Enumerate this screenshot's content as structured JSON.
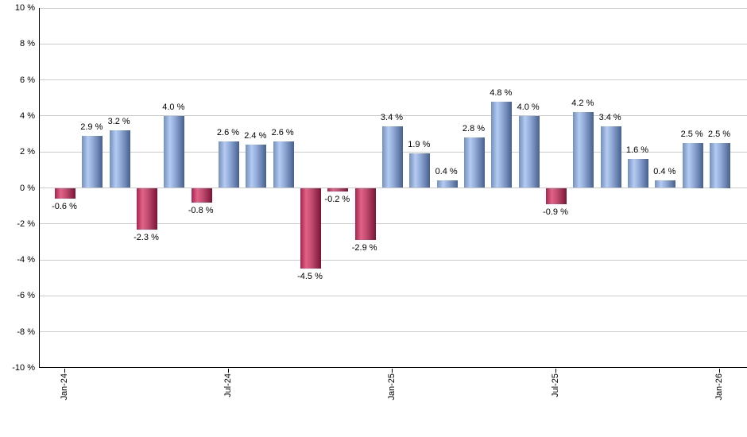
{
  "chart_data": {
    "type": "bar",
    "title": "",
    "description": "Monthly percentage returns bar chart, positive months blue, negative months red",
    "unit": "%",
    "values": [
      -0.6,
      2.9,
      3.2,
      -2.3,
      4.0,
      -0.8,
      2.6,
      2.4,
      2.6,
      -4.5,
      -0.2,
      -2.9,
      3.4,
      1.9,
      0.4,
      2.8,
      4.8,
      4.0,
      -0.9,
      4.2,
      3.4,
      1.6,
      0.4,
      2.5,
      2.5
    ],
    "value_label_suffix": " %",
    "x_ticks": [
      {
        "index": 0,
        "label": "Jan-24"
      },
      {
        "index": 6,
        "label": "Jul-24"
      },
      {
        "index": 12,
        "label": "Jan-25"
      },
      {
        "index": 18,
        "label": "Jul-25"
      },
      {
        "index": 24,
        "label": "Jan-26"
      }
    ],
    "y_axis": {
      "min": -10,
      "max": 10,
      "step": 2,
      "label_suffix": " %"
    },
    "grid": true,
    "legend": false,
    "colors": {
      "positive_bar_base": "#7590bb",
      "positive_bar_light": "#b4cbf2",
      "positive_bar_mid": "#8fa8d6",
      "positive_bar_edge": "#47608f",
      "negative_bar_base": "#a62450",
      "negative_bar_light": "#e26287",
      "negative_bar_mid": "#c04a70",
      "negative_bar_edge": "#7b1336",
      "gridline": "#cccccc",
      "axis": "#000000",
      "text": "#000000",
      "background": "#ffffff"
    }
  }
}
